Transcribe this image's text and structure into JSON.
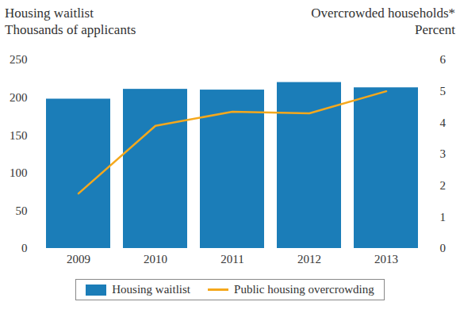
{
  "chart_data": {
    "type": "bar",
    "categories": [
      "2009",
      "2010",
      "2011",
      "2012",
      "2013"
    ],
    "y_label": "Housing waitlist",
    "y_label_units": "Thousands of applicants",
    "y2_label": "Overcrowded households*",
    "y2_label_units": "Percent",
    "series": [
      {
        "name": "Housing waitlist",
        "type": "bar",
        "color": "#1b7db8",
        "values": [
          198,
          211,
          210,
          220,
          213
        ]
      },
      {
        "name": "Public housing overcrowding",
        "type": "line",
        "color": "#f5a81c",
        "axis": "y2",
        "values": [
          1.75,
          3.9,
          4.35,
          4.3,
          5.0
        ]
      }
    ],
    "ylim": [
      0,
      250
    ],
    "yticks": [
      0,
      50,
      100,
      150,
      200,
      250
    ],
    "y2lim": [
      0,
      6
    ],
    "y2ticks": [
      0,
      1,
      2,
      3,
      4,
      5,
      6
    ],
    "grid": false,
    "legend": "bottom"
  }
}
